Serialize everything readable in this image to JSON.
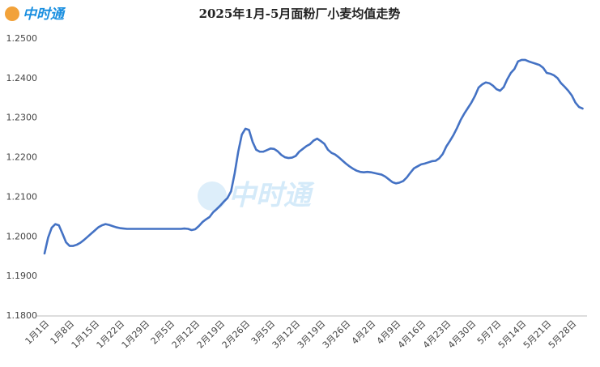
{
  "logo": "中时通",
  "watermark": "中时通",
  "chart_data": {
    "type": "line",
    "title": "2025年1月-5月面粉厂小麦均值走势",
    "color": "#4472c4",
    "grid": false,
    "ylim": [
      1.18,
      1.25
    ],
    "yticks": [
      {
        "value": 1.18,
        "label": "1.1800"
      },
      {
        "value": 1.19,
        "label": "1.1900"
      },
      {
        "value": 1.2,
        "label": "1.2000"
      },
      {
        "value": 1.21,
        "label": "1.2100"
      },
      {
        "value": 1.22,
        "label": "1.2200"
      },
      {
        "value": 1.23,
        "label": "1.2300"
      },
      {
        "value": 1.24,
        "label": "1.2400"
      },
      {
        "value": 1.25,
        "label": "1.2500"
      }
    ],
    "categories": [
      "1月1日",
      null,
      null,
      null,
      null,
      null,
      null,
      "1月8日",
      null,
      null,
      null,
      null,
      null,
      null,
      "1月15日",
      null,
      null,
      null,
      null,
      null,
      null,
      "1月22日",
      null,
      null,
      null,
      null,
      null,
      null,
      "1月29日",
      null,
      null,
      null,
      null,
      null,
      null,
      "2月5日",
      null,
      null,
      null,
      null,
      null,
      null,
      "2月12日",
      null,
      null,
      null,
      null,
      null,
      null,
      "2月19日",
      null,
      null,
      null,
      null,
      null,
      null,
      "2月26日",
      null,
      null,
      null,
      null,
      null,
      null,
      "3月5日",
      null,
      null,
      null,
      null,
      null,
      null,
      "3月12日",
      null,
      null,
      null,
      null,
      null,
      null,
      "3月19日",
      null,
      null,
      null,
      null,
      null,
      null,
      "3月26日",
      null,
      null,
      null,
      null,
      null,
      null,
      "4月2日",
      null,
      null,
      null,
      null,
      null,
      null,
      "4月9日",
      null,
      null,
      null,
      null,
      null,
      null,
      "4月16日",
      null,
      null,
      null,
      null,
      null,
      null,
      "4月23日",
      null,
      null,
      null,
      null,
      null,
      null,
      "4月30日",
      null,
      null,
      null,
      null,
      null,
      null,
      "5月7日",
      null,
      null,
      null,
      null,
      null,
      null,
      "5月14日",
      null,
      null,
      null,
      null,
      null,
      null,
      "5月21日",
      null,
      null,
      null,
      null,
      null,
      null,
      "5月28日",
      null,
      null,
      null
    ],
    "values": [
      1.1958,
      1.1998,
      1.2023,
      1.2032,
      1.2029,
      1.2008,
      1.1986,
      1.1977,
      1.1977,
      1.198,
      1.1985,
      1.1992,
      1.2,
      1.2008,
      1.2016,
      1.2024,
      1.2029,
      1.2032,
      1.203,
      1.2027,
      1.2024,
      1.2022,
      1.2021,
      1.202,
      1.202,
      1.202,
      1.202,
      1.202,
      1.202,
      1.202,
      1.202,
      1.202,
      1.202,
      1.202,
      1.202,
      1.202,
      1.202,
      1.202,
      1.202,
      1.2021,
      1.202,
      1.2017,
      1.2019,
      1.2027,
      1.2037,
      1.2044,
      1.205,
      1.2062,
      1.207,
      1.2079,
      1.2089,
      1.2098,
      1.2115,
      1.216,
      1.2215,
      1.2258,
      1.2273,
      1.227,
      1.224,
      1.222,
      1.2215,
      1.2215,
      1.2219,
      1.2223,
      1.2222,
      1.2216,
      1.2207,
      1.2201,
      1.2199,
      1.22,
      1.2204,
      1.2215,
      1.2222,
      1.2229,
      1.2234,
      1.2243,
      1.2248,
      1.2242,
      1.2235,
      1.222,
      1.2212,
      1.2208,
      1.2201,
      1.2193,
      1.2185,
      1.2178,
      1.2172,
      1.2167,
      1.2164,
      1.2163,
      1.2164,
      1.2163,
      1.2161,
      1.2159,
      1.2157,
      1.2152,
      1.2145,
      1.2138,
      1.2135,
      1.2137,
      1.2141,
      1.215,
      1.2162,
      1.2173,
      1.2178,
      1.2183,
      1.2185,
      1.2188,
      1.2191,
      1.2192,
      1.2198,
      1.2209,
      1.2228,
      1.2242,
      1.2257,
      1.2275,
      1.2295,
      1.2311,
      1.2325,
      1.2339,
      1.2356,
      1.2377,
      1.2385,
      1.239,
      1.2388,
      1.2382,
      1.2373,
      1.2369,
      1.2378,
      1.2398,
      1.2414,
      1.2424,
      1.2443,
      1.2447,
      1.2447,
      1.2443,
      1.244,
      1.2437,
      1.2434,
      1.2427,
      1.2414,
      1.2412,
      1.2408,
      1.2401,
      1.2388,
      1.2379,
      1.2369,
      1.2357,
      1.2339,
      1.2328,
      1.2324
    ]
  }
}
